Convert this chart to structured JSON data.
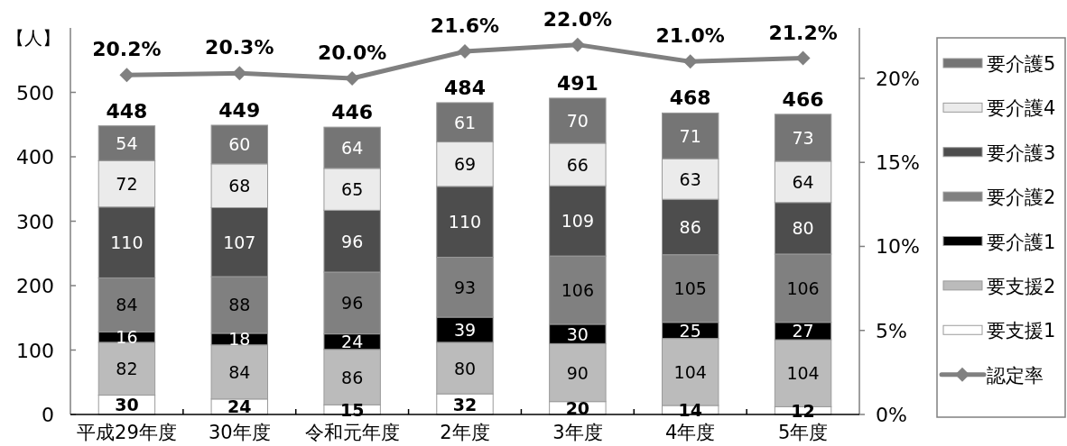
{
  "chart_data": {
    "type": "bar",
    "stacked": true,
    "ylabel": "【人】",
    "categories": [
      "平成29年度",
      "30年度",
      "令和元年度",
      "2年度",
      "3年度",
      "4年度",
      "5年度"
    ],
    "series": [
      {
        "name": "要支援1",
        "color": "#ffffff",
        "values": [
          30,
          24,
          15,
          32,
          20,
          14,
          12
        ]
      },
      {
        "name": "要支援2",
        "color": "#bbbbbb",
        "values": [
          82,
          84,
          86,
          80,
          90,
          104,
          104
        ]
      },
      {
        "name": "要介護1",
        "color": "#000000",
        "values": [
          16,
          18,
          24,
          39,
          30,
          25,
          27
        ]
      },
      {
        "name": "要介護2",
        "color": "#808080",
        "values": [
          84,
          88,
          96,
          93,
          106,
          105,
          106
        ]
      },
      {
        "name": "要介護3",
        "color": "#4d4d4d",
        "values": [
          110,
          107,
          96,
          110,
          109,
          86,
          80
        ]
      },
      {
        "name": "要介護4",
        "color": "#ebebeb",
        "values": [
          72,
          68,
          65,
          69,
          66,
          63,
          64
        ]
      },
      {
        "name": "要介護5",
        "color": "#757575",
        "values": [
          54,
          60,
          64,
          61,
          70,
          71,
          73
        ]
      },
      {
        "name": "認定率",
        "type": "line",
        "axis": "y2",
        "color": "#808080",
        "marker": "diamond",
        "values": [
          20.2,
          20.3,
          20.0,
          21.6,
          22.0,
          21.0,
          21.2
        ],
        "value_labels": [
          "20.2%",
          "20.3%",
          "20.0%",
          "21.6%",
          "22.0%",
          "21.0%",
          "21.2%"
        ]
      }
    ],
    "ylim": [
      0,
      600
    ],
    "yticks": [
      0,
      100,
      200,
      300,
      400,
      500
    ],
    "y2lim": [
      0,
      23
    ],
    "y2ticks": [
      {
        "value": 0,
        "label": "0%"
      },
      {
        "value": 5,
        "label": "5%"
      },
      {
        "value": 10,
        "label": "10%"
      },
      {
        "value": 15,
        "label": "15%"
      },
      {
        "value": 20,
        "label": "20%"
      }
    ],
    "data_labels": true,
    "totals": [
      "448",
      "449",
      "446",
      "484",
      "491",
      "468",
      "466"
    ],
    "legend": "right"
  }
}
